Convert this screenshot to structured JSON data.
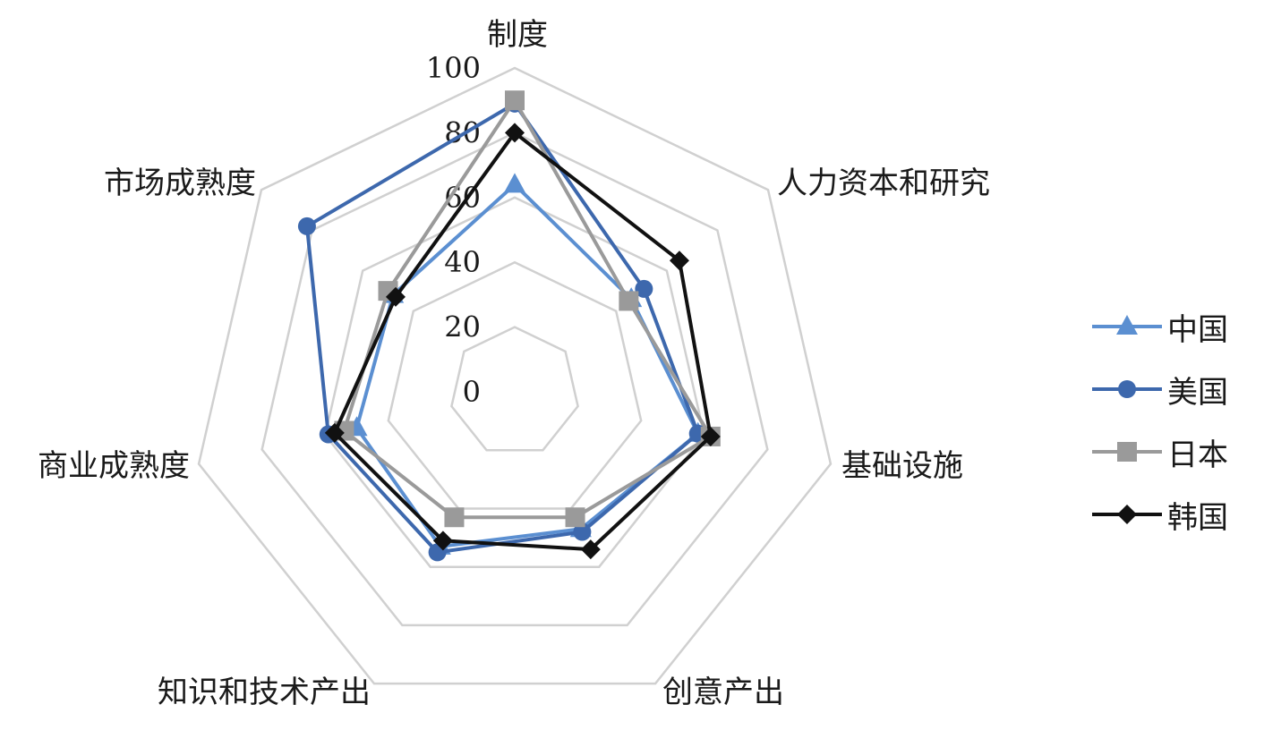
{
  "chart_data": {
    "type": "radar",
    "title": "",
    "axes": [
      "制度",
      "人力资本和研究",
      "基础设施",
      "创意产出",
      "知识和技术产出",
      "商业成熟度",
      "市场成熟度"
    ],
    "rlim": [
      0,
      100
    ],
    "r_ticks": [
      0,
      20,
      40,
      60,
      80,
      100
    ],
    "r_tick_labels": [
      "0",
      "20",
      "40",
      "60",
      "80",
      "100"
    ],
    "grid": true,
    "legend_position": "right",
    "series": [
      {
        "name": "中国",
        "marker": "triangle",
        "color": "#5b8fd1",
        "values": [
          64,
          46,
          58,
          47,
          53,
          50,
          48
        ]
      },
      {
        "name": "美国",
        "marker": "circle",
        "color": "#3d68ad",
        "values": [
          89,
          51,
          58,
          48,
          55,
          59,
          82
        ]
      },
      {
        "name": "日本",
        "marker": "square",
        "color": "#9a9a9a",
        "values": [
          90,
          45,
          62,
          43,
          43,
          54,
          50
        ]
      },
      {
        "name": "韩国",
        "marker": "diamond",
        "color": "#111111",
        "values": [
          80,
          65,
          62,
          54,
          51,
          57,
          47
        ]
      }
    ]
  }
}
